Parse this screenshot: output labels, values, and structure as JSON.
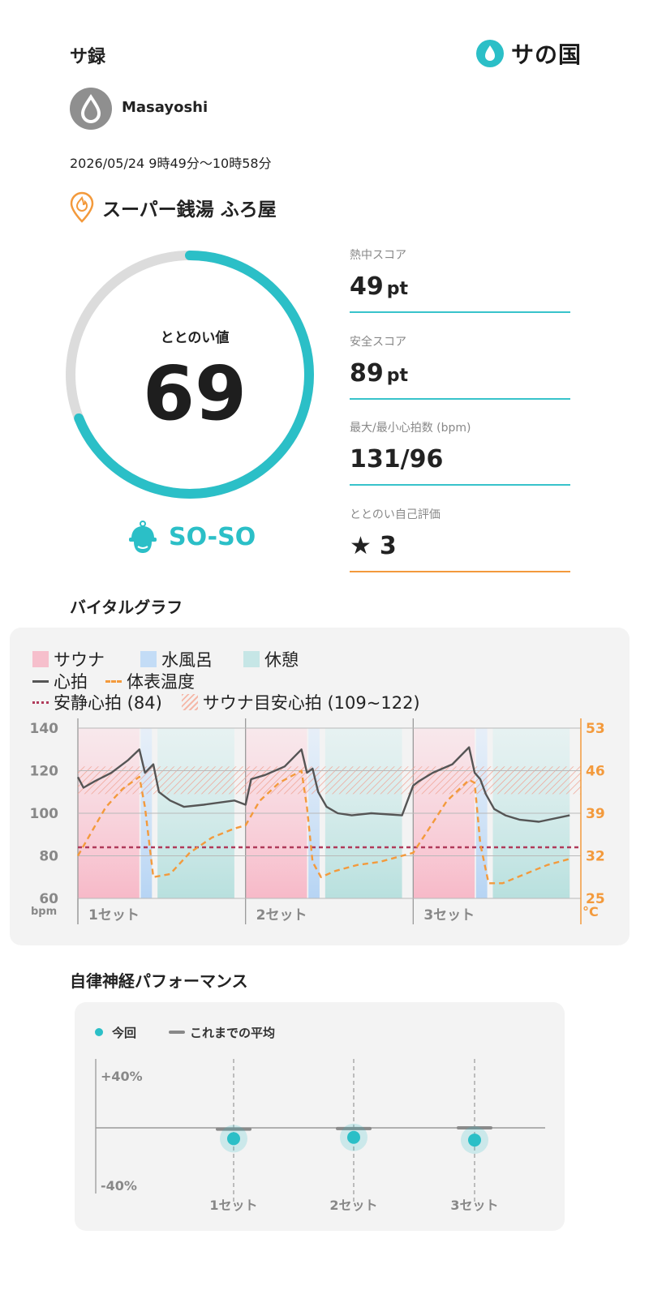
{
  "header": {
    "title": "サ録",
    "brand": "サの国"
  },
  "user": {
    "name": "Masayoshi"
  },
  "session": {
    "datetime": "2026/05/24 9時49分〜10時58分",
    "venue": "スーパー銭湯 ふろ屋"
  },
  "totonoi": {
    "label": "ととのい値",
    "value": "69",
    "progress": 0.69,
    "mood": "SO-SO"
  },
  "stats": [
    {
      "label": "熱中スコア",
      "value": "49",
      "unit": "pt"
    },
    {
      "label": "安全スコア",
      "value": "89",
      "unit": "pt"
    },
    {
      "label": "最大/最小心拍数 (bpm)",
      "value": "131/96",
      "unit": ""
    },
    {
      "label": "ととのい自己評価",
      "value": "3",
      "unit": ""
    }
  ],
  "vital": {
    "title": "バイタルグラフ",
    "legend": {
      "sauna": "サウナ",
      "cold": "水風呂",
      "rest": "休憩",
      "hr": "心拍",
      "temp": "体表温度",
      "resting": "安静心拍 (84)",
      "target": "サウナ目安心拍 (109~122)"
    },
    "y_left_ticks": [
      "140",
      "120",
      "100",
      "80",
      "60"
    ],
    "y_right_ticks": [
      "53",
      "46",
      "39",
      "32",
      "25"
    ],
    "left_unit": "bpm",
    "right_unit": "°C",
    "sets": [
      "1セット",
      "2セット",
      "3セット"
    ]
  },
  "autonomic": {
    "title": "自律神経パフォーマンス",
    "legend_current": "今回",
    "legend_avg": "これまでの平均",
    "y_top": "+40%",
    "y_bottom": "-40%",
    "sets": [
      "1セット",
      "2セット",
      "3セット"
    ]
  },
  "chart_data": [
    {
      "type": "line",
      "title": "バイタルグラフ",
      "y_left": {
        "label": "bpm",
        "range": [
          60,
          140
        ]
      },
      "y_right": {
        "label": "°C",
        "range": [
          25,
          53
        ]
      },
      "resting_hr": 84,
      "target_hr": [
        109,
        122
      ],
      "phases": [
        {
          "set": "1セット",
          "sauna": [
            0.0,
            0.22
          ],
          "cold": [
            0.225,
            0.265
          ],
          "rest": [
            0.285,
            0.56
          ]
        },
        {
          "set": "2セット",
          "sauna": [
            0.6,
            0.82
          ],
          "cold": [
            0.825,
            0.865
          ],
          "rest": [
            0.885,
            1.16
          ]
        },
        {
          "set": "3セット",
          "sauna": [
            1.2,
            1.42
          ],
          "cold": [
            1.425,
            1.465
          ],
          "rest": [
            1.485,
            1.76
          ]
        }
      ],
      "series": [
        {
          "name": "心拍",
          "x": [
            0,
            0.02,
            0.06,
            0.12,
            0.18,
            0.22,
            0.24,
            0.27,
            0.29,
            0.33,
            0.38,
            0.45,
            0.56,
            0.6,
            0.62,
            0.67,
            0.74,
            0.8,
            0.82,
            0.84,
            0.86,
            0.89,
            0.93,
            0.98,
            1.05,
            1.16,
            1.2,
            1.22,
            1.27,
            1.34,
            1.4,
            1.42,
            1.44,
            1.46,
            1.49,
            1.53,
            1.58,
            1.65,
            1.76
          ],
          "values": [
            117,
            112,
            115,
            119,
            125,
            130,
            119,
            123,
            110,
            106,
            103,
            104,
            106,
            104,
            116,
            118,
            122,
            130,
            119,
            121,
            110,
            103,
            100,
            99,
            100,
            99,
            113,
            115,
            119,
            123,
            131,
            119,
            116,
            109,
            102,
            99,
            97,
            96,
            99
          ]
        },
        {
          "name": "体表温度",
          "x": [
            0,
            0.05,
            0.1,
            0.16,
            0.22,
            0.24,
            0.27,
            0.33,
            0.4,
            0.48,
            0.56,
            0.6,
            0.65,
            0.72,
            0.8,
            0.82,
            0.84,
            0.87,
            0.92,
            1.0,
            1.08,
            1.16,
            1.2,
            1.25,
            1.32,
            1.4,
            1.42,
            1.44,
            1.47,
            1.52,
            1.6,
            1.68,
            1.76
          ],
          "values": [
            32.0,
            36.0,
            40.0,
            43.0,
            45.0,
            40.0,
            28.5,
            29.0,
            32.5,
            35.0,
            36.5,
            37.0,
            41.0,
            44.0,
            46.0,
            40.0,
            31.0,
            28.5,
            29.5,
            30.5,
            31.0,
            32.0,
            32.5,
            36.0,
            41.0,
            44.5,
            44.0,
            34.0,
            27.5,
            27.5,
            29.0,
            30.5,
            31.5
          ]
        }
      ]
    },
    {
      "type": "scatter",
      "title": "自律神経パフォーマンス",
      "ylim": [
        -40,
        40
      ],
      "categories": [
        "1セット",
        "2セット",
        "3セット"
      ],
      "series": [
        {
          "name": "今回",
          "values": [
            -8,
            -7,
            -9
          ]
        },
        {
          "name": "これまでの平均",
          "values": [
            -1,
            -0.5,
            0
          ]
        }
      ]
    }
  ]
}
